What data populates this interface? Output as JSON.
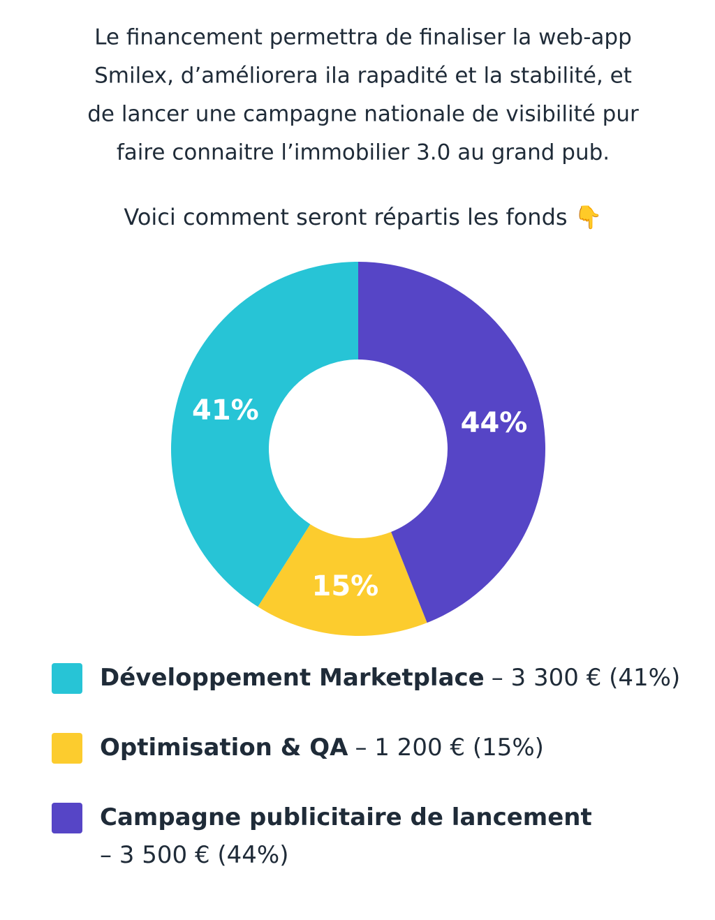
{
  "chart_data": {
    "type": "donut",
    "intro": [
      "Le financement permettra de finaliser la web-app",
      "Smilex, d’améliorera ila rapadité et la stabilité, et",
      "de lancer une campagne nationale de visibilité pur",
      "faire connaitre l’immobilier 3.0 au grand pub."
    ],
    "title": "Voici comment seront répartis les fonds 👇",
    "categories": [
      "Développement Marketplace",
      "Optimisation & QA",
      "Campagne publicitaire de lancement"
    ],
    "values": [
      41,
      15,
      44
    ],
    "value_labels": [
      "41%",
      "15%",
      "44%"
    ],
    "colors": [
      "#27c4d6",
      "#fccc2e",
      "#5645c6"
    ],
    "legend_details": [
      "– 3 300 € (41%)",
      "– 1 200 € (15%)",
      "– 3 500 € (44%)"
    ]
  }
}
